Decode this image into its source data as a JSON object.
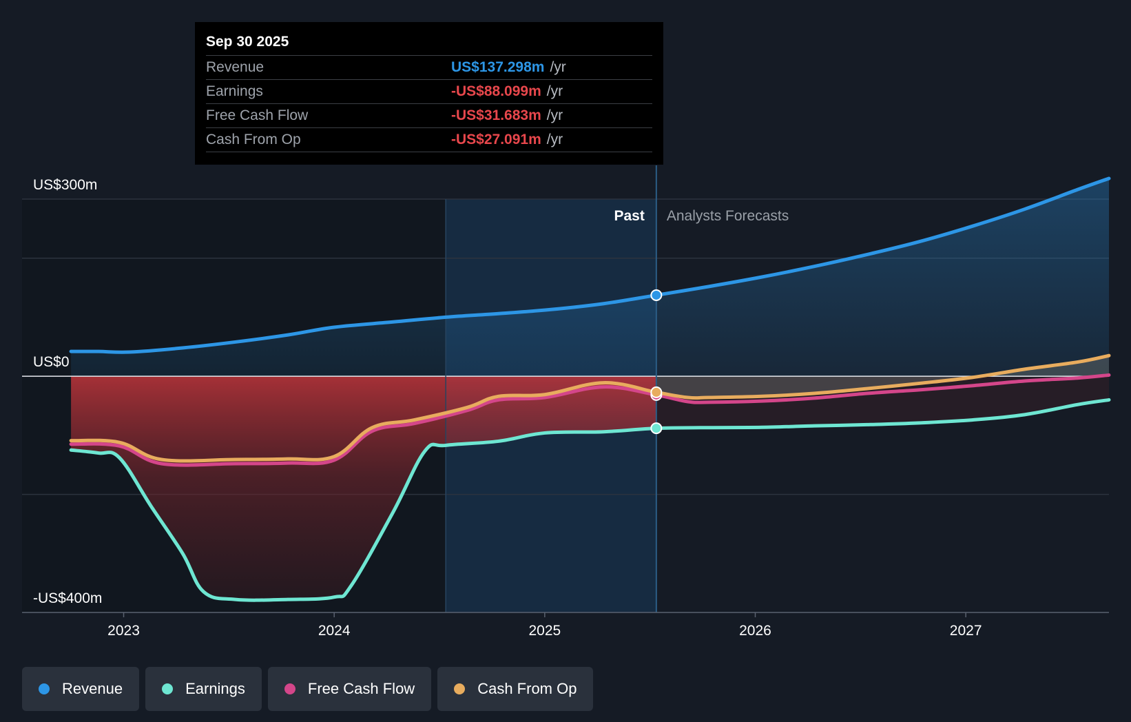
{
  "tooltip": {
    "date": "Sep 30 2025",
    "rows": [
      {
        "label": "Revenue",
        "value": "US$137.298m",
        "unit": "/yr",
        "color": "#2d96e6"
      },
      {
        "label": "Earnings",
        "value": "-US$88.099m",
        "unit": "/yr",
        "color": "#e8474c"
      },
      {
        "label": "Free Cash Flow",
        "value": "-US$31.683m",
        "unit": "/yr",
        "color": "#e8474c"
      },
      {
        "label": "Cash From Op",
        "value": "-US$27.091m",
        "unit": "/yr",
        "color": "#e8474c"
      }
    ]
  },
  "legend": [
    {
      "label": "Revenue",
      "color": "#2d96e6"
    },
    {
      "label": "Earnings",
      "color": "#6ee6d2"
    },
    {
      "label": "Free Cash Flow",
      "color": "#d4468a"
    },
    {
      "label": "Cash From Op",
      "color": "#e8ac5e"
    }
  ],
  "chart_data": {
    "type": "line",
    "y_axis_labels": [
      {
        "value": 300,
        "text": "US$300m"
      },
      {
        "value": 0,
        "text": "US$0"
      },
      {
        "value": -400,
        "text": "-US$400m"
      }
    ],
    "ylim": [
      -400,
      300
    ],
    "xlim": [
      2022.95,
      2027.9
    ],
    "x_ticks": [
      {
        "value": 2023.22,
        "text": "2023"
      },
      {
        "value": 2024.22,
        "text": "2024"
      },
      {
        "value": 2025.22,
        "text": "2025"
      },
      {
        "value": 2026.22,
        "text": "2026"
      },
      {
        "value": 2027.22,
        "text": "2027"
      }
    ],
    "gridlines": [
      300,
      200,
      0,
      -200
    ],
    "past_label": "Past",
    "forecast_label": "Analysts Forecasts",
    "past_divider": 2025.75,
    "highlight_start": 2024.75,
    "series": [
      {
        "name": "Revenue",
        "color": "#2d96e6",
        "points": [
          [
            2022.97,
            42
          ],
          [
            2023.1,
            42
          ],
          [
            2023.25,
            41
          ],
          [
            2023.5,
            48
          ],
          [
            2023.75,
            58
          ],
          [
            2024.0,
            70
          ],
          [
            2024.22,
            83
          ],
          [
            2024.5,
            92
          ],
          [
            2024.75,
            100
          ],
          [
            2025.0,
            106
          ],
          [
            2025.25,
            113
          ],
          [
            2025.5,
            123
          ],
          [
            2025.75,
            137.3
          ],
          [
            2026.0,
            152
          ],
          [
            2026.25,
            168
          ],
          [
            2026.5,
            186
          ],
          [
            2026.75,
            206
          ],
          [
            2027.0,
            228
          ],
          [
            2027.25,
            254
          ],
          [
            2027.5,
            283
          ],
          [
            2027.75,
            316
          ],
          [
            2027.9,
            335
          ]
        ]
      },
      {
        "name": "Earnings",
        "color": "#6ee6d2",
        "points": [
          [
            2022.97,
            -125
          ],
          [
            2023.1,
            -130
          ],
          [
            2023.2,
            -138
          ],
          [
            2023.35,
            -220
          ],
          [
            2023.5,
            -300
          ],
          [
            2023.6,
            -365
          ],
          [
            2023.75,
            -378
          ],
          [
            2024.0,
            -378
          ],
          [
            2024.22,
            -374
          ],
          [
            2024.3,
            -355
          ],
          [
            2024.5,
            -230
          ],
          [
            2024.65,
            -127
          ],
          [
            2024.75,
            -117
          ],
          [
            2025.0,
            -110
          ],
          [
            2025.22,
            -96
          ],
          [
            2025.5,
            -94
          ],
          [
            2025.75,
            -88.1
          ],
          [
            2026.0,
            -87
          ],
          [
            2026.25,
            -86.5
          ],
          [
            2026.5,
            -84
          ],
          [
            2026.75,
            -82
          ],
          [
            2027.0,
            -79
          ],
          [
            2027.25,
            -74
          ],
          [
            2027.5,
            -65
          ],
          [
            2027.75,
            -48
          ],
          [
            2027.9,
            -40
          ]
        ]
      },
      {
        "name": "Free Cash Flow",
        "color": "#d4468a",
        "points": [
          [
            2022.97,
            -115
          ],
          [
            2023.2,
            -118
          ],
          [
            2023.4,
            -148
          ],
          [
            2023.75,
            -148
          ],
          [
            2024.0,
            -147
          ],
          [
            2024.22,
            -142
          ],
          [
            2024.4,
            -93
          ],
          [
            2024.6,
            -80
          ],
          [
            2024.85,
            -58
          ],
          [
            2025.0,
            -40
          ],
          [
            2025.22,
            -36
          ],
          [
            2025.5,
            -18
          ],
          [
            2025.75,
            -31.7
          ],
          [
            2025.9,
            -43
          ],
          [
            2026.0,
            -44
          ],
          [
            2026.25,
            -42
          ],
          [
            2026.5,
            -37
          ],
          [
            2026.75,
            -29
          ],
          [
            2027.0,
            -23
          ],
          [
            2027.25,
            -16
          ],
          [
            2027.5,
            -8
          ],
          [
            2027.75,
            -3
          ],
          [
            2027.9,
            2
          ]
        ]
      },
      {
        "name": "Cash From Op",
        "color": "#e8ac5e",
        "points": [
          [
            2022.97,
            -109
          ],
          [
            2023.2,
            -112
          ],
          [
            2023.4,
            -141
          ],
          [
            2023.75,
            -141
          ],
          [
            2024.0,
            -140
          ],
          [
            2024.22,
            -136
          ],
          [
            2024.4,
            -87
          ],
          [
            2024.6,
            -74
          ],
          [
            2024.85,
            -53
          ],
          [
            2025.0,
            -34
          ],
          [
            2025.22,
            -31
          ],
          [
            2025.5,
            -11
          ],
          [
            2025.75,
            -27.1
          ],
          [
            2025.9,
            -36
          ],
          [
            2026.0,
            -36
          ],
          [
            2026.25,
            -34
          ],
          [
            2026.5,
            -29
          ],
          [
            2026.75,
            -21
          ],
          [
            2027.0,
            -12
          ],
          [
            2027.25,
            -2
          ],
          [
            2027.5,
            12
          ],
          [
            2027.75,
            24
          ],
          [
            2027.9,
            35
          ]
        ]
      }
    ]
  }
}
